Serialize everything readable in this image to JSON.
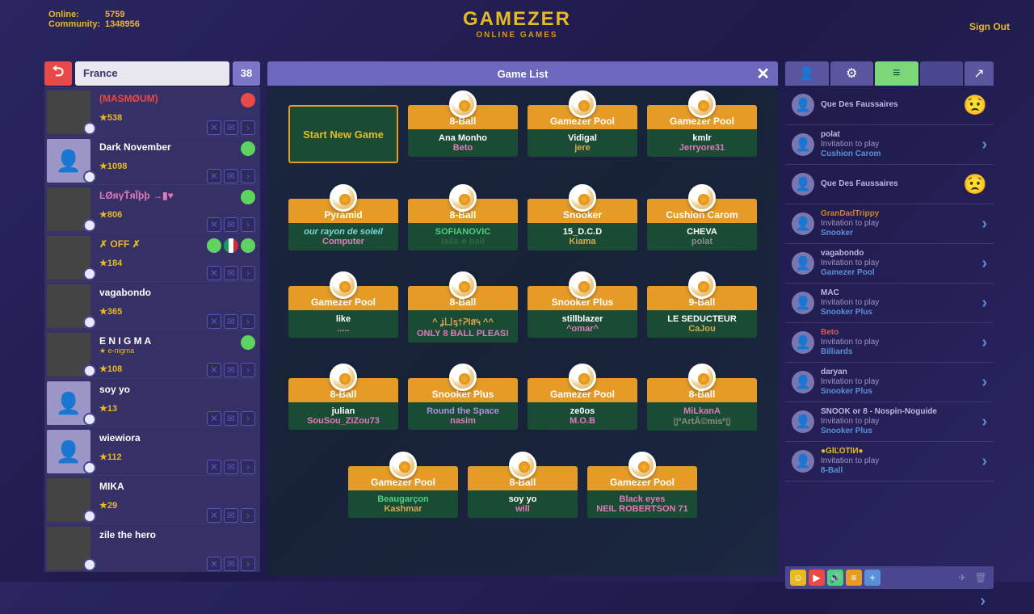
{
  "colors": {
    "gold": "#e8b923",
    "orange": "#e59b26",
    "green": "#1a4c35",
    "red": "#e84a4a",
    "purple": "#6d68bd",
    "darkpurple": "#2a2560",
    "blue": "#5a90d8"
  },
  "top": {
    "online_label": "Online:",
    "online": "5759",
    "community_label": "Community:",
    "community": "1348956",
    "logo": "GAMEZER",
    "sub": "ONLINE GAMES",
    "signout": "Sign Out"
  },
  "leftHead": {
    "country": "France",
    "count": "38"
  },
  "friends": [
    {
      "name": "(MASMØUM)",
      "stars": "★538",
      "color": "#e84a4a",
      "img": true,
      "badges": [
        "red"
      ]
    },
    {
      "name": "Dark November",
      "stars": "★1098",
      "color": "#fff",
      "img": false,
      "badges": [
        "grn"
      ]
    },
    {
      "name": "ĿØяγŤяĨþþ →▮♥",
      "stars": "★806",
      "color": "#e17ab8",
      "img": true,
      "badges": [
        "grn"
      ]
    },
    {
      "name": "✗ OFF ✗",
      "stars": "★184",
      "color": "#e8b923",
      "img": true,
      "badges": [
        "grn",
        "flag",
        "grn"
      ]
    },
    {
      "name": "vagabondo",
      "stars": "★365",
      "color": "#fff",
      "img": true,
      "badges": []
    },
    {
      "name": "E N I G M A",
      "stars": "★108",
      "sub": "★ e-nigma",
      "color": "#fff",
      "img": true,
      "badges": [
        "grn"
      ]
    },
    {
      "name": "soy yo",
      "stars": "★13",
      "color": "#fff",
      "img": false,
      "badges": []
    },
    {
      "name": "wiewiora",
      "stars": "★112",
      "color": "#fff",
      "img": false,
      "badges": []
    },
    {
      "name": "MIKA",
      "stars": "★29",
      "color": "#fff",
      "img": true,
      "badges": []
    },
    {
      "name": "zile the hero",
      "stars": "",
      "color": "#fff",
      "img": true,
      "badges": []
    }
  ],
  "midHead": {
    "title": "Game List"
  },
  "games": {
    "startLabel": "Start New Game",
    "rows": [
      [
        {
          "start": true
        },
        {
          "type": "8-Ball",
          "p1": "Ana Monho",
          "p2": "Beto",
          "p2c": "#e17ab8"
        },
        {
          "type": "Gamezer Pool",
          "p1": "Vidigal",
          "p2": "jere",
          "p2c": "#d8a850"
        },
        {
          "type": "Gamezer Pool",
          "p1": "kmlr",
          "p2": "Jerryore31"
        }
      ],
      [
        {
          "type": "Pyramid",
          "p1": "our rayon de soleil",
          "p1c": "#7ad8d8",
          "p1i": true,
          "p2": "Computer"
        },
        {
          "type": "8-Ball",
          "p1": "SOFIANOVIC",
          "p1c": "#4fd080",
          "p2": "laila ♣ ball",
          "p2c": "#2a6640"
        },
        {
          "type": "Snooker",
          "p1": "15_D.C.D",
          "p2": "Kiama",
          "p2c": "#d8a850"
        },
        {
          "type": "Cushion Carom",
          "p1": "CHEVA",
          "p2": "polat",
          "p2c": "#8a8a8a"
        }
      ],
      [
        {
          "type": "Gamezer Pool",
          "p1": "like",
          "p2": "....."
        },
        {
          "type": "8-Ball",
          "p1": "^ ʝㄩᶊ†ᕈlส५ ^^",
          "p1c": "#d8a850",
          "p2": "ONLY 8 BALL PLEAS!"
        },
        {
          "type": "Snooker Plus",
          "p1": "stillblazer",
          "p2": "^omar^"
        },
        {
          "type": "9-Ball",
          "p1": "LE SEDUCTEUR",
          "p2": "CaJou",
          "p2c": "#d8a850"
        }
      ],
      [
        {
          "type": "8-Ball",
          "p1": "julian",
          "p2": "SouSou_ZiZou73"
        },
        {
          "type": "Snooker Plus",
          "p1": "Round the Space",
          "p1c": "#b090e0",
          "p2": "nasim"
        },
        {
          "type": "Gamezer Pool",
          "p1": "ze0os",
          "p2": "M.O.B"
        },
        {
          "type": "8-Ball",
          "p1": "MiLkanA",
          "p1c": "#e17ab8",
          "p2": "▯ºArtĀ©misº▯",
          "p2c": "#8a8a8a"
        }
      ],
      [
        {
          "type": "Gamezer Pool",
          "p1": "Beaugarçon",
          "p1c": "#4fd080",
          "p2": "Kashmar",
          "p2c": "#d8a850"
        },
        {
          "type": "8-Ball",
          "p1": "soy yo",
          "p2": "will"
        },
        {
          "type": "Gamezer Pool",
          "p1": "Black eyes",
          "p1c": "#e17ab8",
          "p2": "NEIL ROBERTSON 71"
        }
      ]
    ]
  },
  "invites": [
    {
      "name": "Que Des Faussaires",
      "txt": "",
      "game": "",
      "emoji": "😟",
      "nc": "#bbb8e0"
    },
    {
      "name": "polat",
      "txt": "Invitation to play",
      "game": "Cushion Carom",
      "arrow": true,
      "nc": "#bbb8e0"
    },
    {
      "name": "Que Des Faussaires",
      "txt": "",
      "game": "",
      "emoji": "😟",
      "nc": "#bbb8e0"
    },
    {
      "name": "GranDadTrippy",
      "txt": "Invitation to play",
      "game": "Snooker",
      "arrow": true,
      "nc": "#d08030"
    },
    {
      "name": "vagabondo",
      "txt": "Invitation to play",
      "game": "Gamezer Pool",
      "arrow": true,
      "nc": "#bbb8e0"
    },
    {
      "name": "MAC",
      "txt": "Invitation to play",
      "game": "Snooker Plus",
      "arrow": true,
      "nc": "#bbb8e0"
    },
    {
      "name": "Beto",
      "txt": "Invitation to play",
      "game": "Billiards",
      "arrow": true,
      "nc": "#d85a5a"
    },
    {
      "name": "daryan",
      "txt": "Invitation to play",
      "game": "Snooker Plus",
      "arrow": true,
      "nc": "#bbb8e0"
    },
    {
      "name": "SNOOK or 8 - Nospin-Noguide",
      "txt": "Invitation to play",
      "game": "Snooker Plus",
      "arrow": true,
      "nc": "#bbb8e0"
    },
    {
      "name": "●ĞĬĽŎŤĨИ●",
      "txt": "Invitation to play",
      "game": "8-Ball",
      "arrow": true,
      "nc": "#e8b923"
    }
  ]
}
